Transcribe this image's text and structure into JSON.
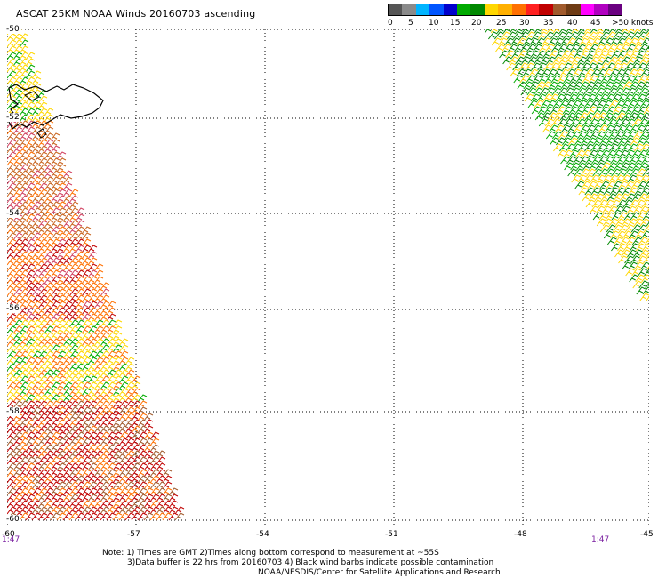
{
  "title": "ASCAT 25KM NOAA Winds 20160703 ascending",
  "legend": {
    "colors": [
      "#555555",
      "#8a8a8a",
      "#00b4ff",
      "#0055ff",
      "#0000cc",
      "#00aa00",
      "#008800",
      "#ffd700",
      "#ffb000",
      "#ff7000",
      "#ff2020",
      "#c00000",
      "#a05a2c",
      "#6e3b14",
      "#ff00ff",
      "#b000c0",
      "#6a0080"
    ],
    "labels": [
      "0",
      "5",
      "10",
      "15",
      "20",
      "25",
      "30",
      "35",
      "40",
      "45",
      ">50 knots"
    ]
  },
  "map": {
    "lat_labels": [
      "-50",
      "-52",
      "-54",
      "-56",
      "-58",
      "-60"
    ],
    "lon_labels": [
      "-60",
      "-57",
      "-54",
      "-51",
      "-48",
      "-45"
    ],
    "time_left": "1:47",
    "time_right": "1:47"
  },
  "notes": {
    "line1": "Note: 1) Times are GMT 2)Times along bottom correspond to measurement at ~55S",
    "line2": "3)Data buffer is 22 hrs from 20160703 4) Black wind barbs indicate possible contamination",
    "line3": "NOAA/NESDIS/Center for Satellite Applications and Research"
  }
}
